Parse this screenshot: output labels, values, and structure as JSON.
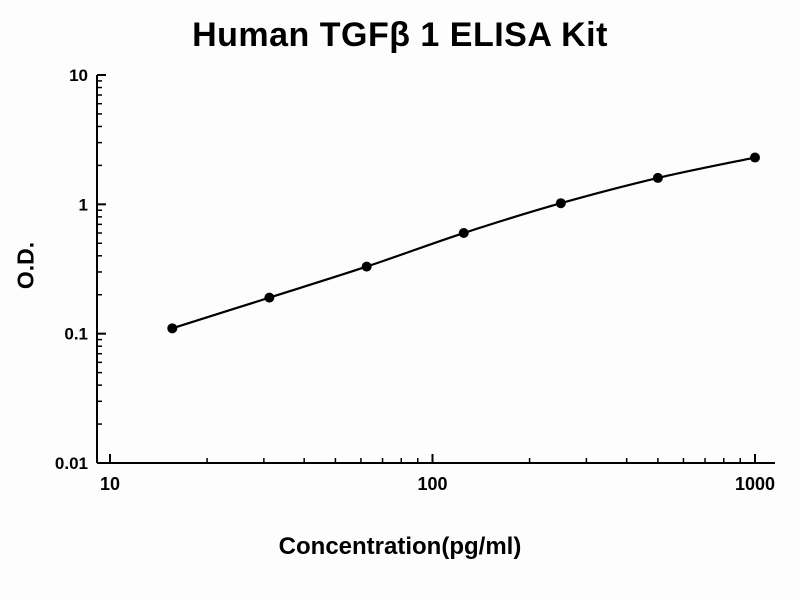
{
  "chart_data": {
    "type": "line",
    "title": "Human TGFβ 1 ELISA Kit",
    "xlabel": "Concentration(pg/ml)",
    "ylabel": "O.D.",
    "xscale": "log",
    "yscale": "log",
    "xlim": [
      10,
      1000
    ],
    "ylim": [
      0.01,
      10
    ],
    "x": [
      15.6,
      31.2,
      62.5,
      125,
      250,
      500,
      1000
    ],
    "y": [
      0.11,
      0.19,
      0.33,
      0.6,
      1.02,
      1.6,
      2.3
    ],
    "x_ticks": [
      10,
      100,
      1000
    ],
    "x_tick_labels": [
      "10",
      "100",
      "1000"
    ],
    "y_ticks": [
      10,
      1,
      0.1,
      0.01
    ],
    "y_tick_labels": [
      "10",
      "1",
      "0.1",
      "0.01"
    ],
    "line_color": "#000000",
    "marker_color": "#000000",
    "axis_color": "#000000",
    "grid": false,
    "legend": null
  }
}
